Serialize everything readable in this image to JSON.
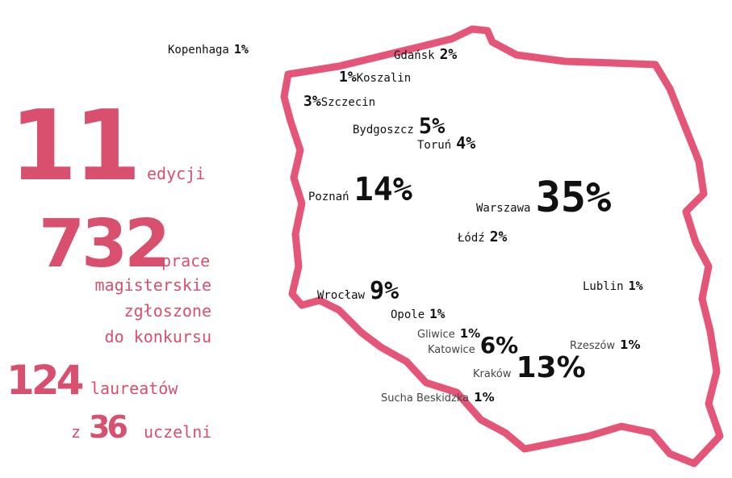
{
  "stats": [
    {
      "number": "11",
      "label": "edycji"
    },
    {
      "number": "732",
      "label": "prace",
      "lines": [
        "magisterskie",
        "zgłoszone",
        "do konkursu"
      ]
    },
    {
      "number": "124",
      "label": "laureatów"
    },
    {
      "prefix": "z",
      "number": "36",
      "label": "uczelni"
    }
  ],
  "cities": [
    {
      "name": "Kopenhaga",
      "share": "1%"
    },
    {
      "name": "Gdańsk",
      "share": "2%"
    },
    {
      "name": "Koszalin",
      "share": "1%"
    },
    {
      "name": "Szczecin",
      "share": "3%"
    },
    {
      "name": "Bydgoszcz",
      "share": "5%"
    },
    {
      "name": "Toruń",
      "share": "4%"
    },
    {
      "name": "Poznań",
      "share": "14%"
    },
    {
      "name": "Warszawa",
      "share": "35%"
    },
    {
      "name": "Łódź",
      "share": "2%"
    },
    {
      "name": "Lublin",
      "share": "1%"
    },
    {
      "name": "Wrocław",
      "share": "9%"
    },
    {
      "name": "Opole",
      "share": "1%"
    },
    {
      "name": "Gliwice",
      "share": "1%"
    },
    {
      "name": "Katowice",
      "share": "6%"
    },
    {
      "name": "Rzeszów",
      "share": "1%"
    },
    {
      "name": "Kraków",
      "share": "13%"
    },
    {
      "name": "Sucha Beskidzka",
      "share": "1%"
    }
  ]
}
